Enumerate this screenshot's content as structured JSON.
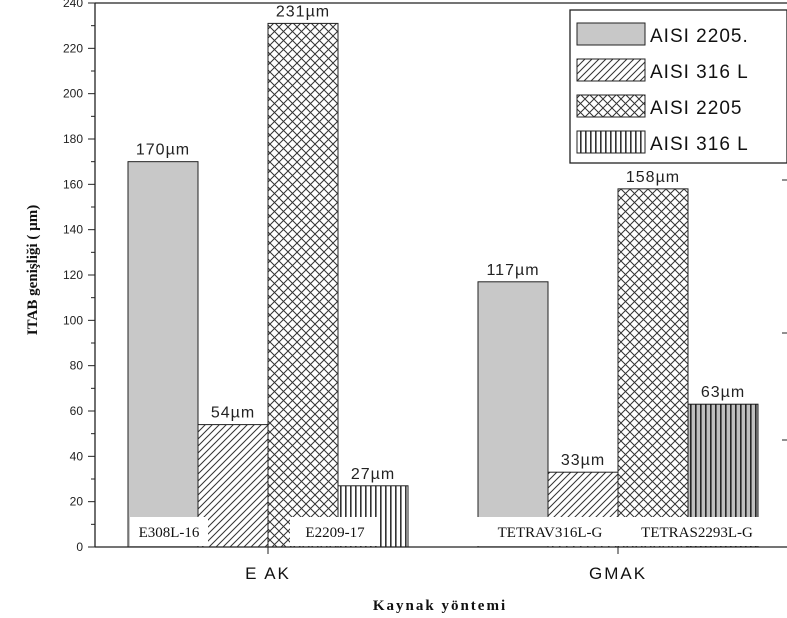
{
  "chart_data": {
    "type": "bar",
    "categories": [
      "E AK",
      "GMAK"
    ],
    "series": [
      {
        "name": "AISI 2205.",
        "values": [
          170,
          117
        ],
        "pattern": "solid-gray"
      },
      {
        "name": "AISI 316 L",
        "values": [
          54,
          33
        ],
        "pattern": "diagonal-hatch"
      },
      {
        "name": "AISI 2205",
        "values": [
          231,
          158
        ],
        "pattern": "cross-hatch"
      },
      {
        "name": "AISI 316 L",
        "values": [
          27,
          63
        ],
        "pattern": "vertical-lines"
      }
    ],
    "value_labels": [
      [
        "170µm",
        "117µm"
      ],
      [
        "54µm",
        "33µm"
      ],
      [
        "231µm",
        "158µm"
      ],
      [
        "27µm",
        "63µm"
      ]
    ],
    "annotations": [
      {
        "category": "E AK",
        "text": "E308L-16"
      },
      {
        "category": "E AK",
        "text": "E2209-17"
      },
      {
        "category": "GMAK",
        "text": "TETRAV316L-G"
      },
      {
        "category": "GMAK",
        "text": "TETRAS2293L-G"
      }
    ],
    "xlabel": "Kaynak yöntemi",
    "ylabel": "ITAB genişliği ( µm)",
    "ylim": [
      0,
      240
    ],
    "yticks": [
      0,
      20,
      40,
      60,
      80,
      100,
      120,
      140,
      160,
      180,
      200,
      220,
      240
    ],
    "legend_position": "top-right",
    "grid": false,
    "colors": {
      "solid_fill": "#c8c8c8",
      "outline": "#222222",
      "hatch": "#333333",
      "background": "#ffffff"
    }
  }
}
